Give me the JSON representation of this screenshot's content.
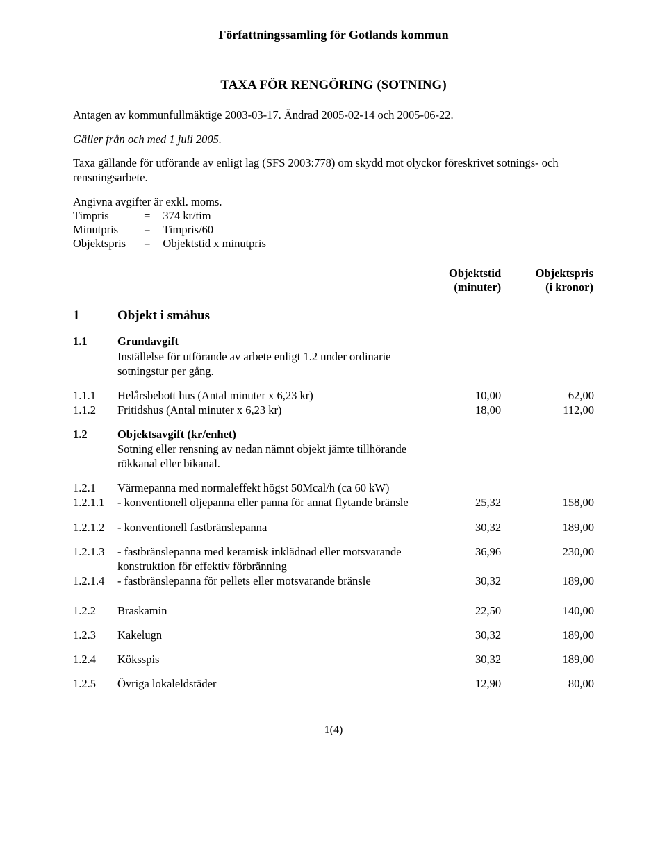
{
  "header": "Författningssamling för Gotlands kommun",
  "title": "TAXA FÖR RENGÖRING (SOTNING)",
  "intro": {
    "line1": "Antagen av kommunfullmäktige 2003-03-17. Ändrad 2005-02-14 och 2005-06-22.",
    "line2": "Gäller från och med 1 juli 2005.",
    "line3": "Taxa gällande för utförande av enligt lag (SFS 2003:778) om skydd mot olyckor föreskrivet sotnings- och rensningsarbete.",
    "line4": "Angivna avgifter är exkl. moms."
  },
  "kv": [
    {
      "k": "Timpris",
      "eq": "=",
      "v": "374 kr/tim"
    },
    {
      "k": "Minutpris",
      "eq": "=",
      "v": "Timpris/60"
    },
    {
      "k": "Objektspris",
      "eq": "=",
      "v": "Objektstid x minutpris"
    }
  ],
  "colHeaders": {
    "c3a": "Objektstid",
    "c3b": "(minuter)",
    "c4a": "Objektspris",
    "c4b": "(i kronor)"
  },
  "sections": {
    "h1": {
      "num": "1",
      "label": "Objekt i småhus"
    },
    "s11": {
      "num": "1.1",
      "title": "Grundavgift",
      "desc": "Inställelse för utförande av arbete enligt 1.2 under ordinarie sotningstur per gång."
    },
    "r111": {
      "num": "1.1.1",
      "desc": "Helårsbebott hus (Antal minuter x 6,23 kr)",
      "v1": "10,00",
      "v2": "62,00"
    },
    "r112": {
      "num": "1.1.2",
      "desc": "Fritidshus (Antal minuter x 6,23 kr)",
      "v1": "18,00",
      "v2": "112,00"
    },
    "s12": {
      "num": "1.2",
      "title": "Objektsavgift (kr/enhet)",
      "desc": "Sotning eller rensning av nedan nämnt objekt jämte tillhörande rökkanal eller bikanal."
    },
    "r121": {
      "num": "1.2.1",
      "desc": "Värmepanna med normaleffekt högst 50Mcal/h (ca 60 kW)"
    },
    "r1211": {
      "num": "1.2.1.1",
      "desc": "- konventionell oljepanna eller panna för annat flytande bränsle",
      "v1": "25,32",
      "v2": "158,00"
    },
    "r1212": {
      "num": "1.2.1.2",
      "desc": "- konventionell fastbränslepanna",
      "v1": "30,32",
      "v2": "189,00"
    },
    "r1213": {
      "num": "1.2.1.3",
      "desc": "- fastbränslepanna med keramisk inklädnad eller motsvarande konstruktion för effektiv förbränning",
      "v1": "36,96",
      "v2": "230,00"
    },
    "r1214": {
      "num": "1.2.1.4",
      "desc": "- fastbränslepanna för pellets eller motsvarande bränsle",
      "v1": "30,32",
      "v2": "189,00"
    },
    "r122": {
      "num": "1.2.2",
      "desc": "Braskamin",
      "v1": "22,50",
      "v2": "140,00"
    },
    "r123": {
      "num": "1.2.3",
      "desc": "Kakelugn",
      "v1": "30,32",
      "v2": "189,00"
    },
    "r124": {
      "num": "1.2.4",
      "desc": "Köksspis",
      "v1": "30,32",
      "v2": "189,00"
    },
    "r125": {
      "num": "1.2.5",
      "desc": "Övriga lokaleldstäder",
      "v1": "12,90",
      "v2": "80,00"
    }
  },
  "footer": "1(4)"
}
